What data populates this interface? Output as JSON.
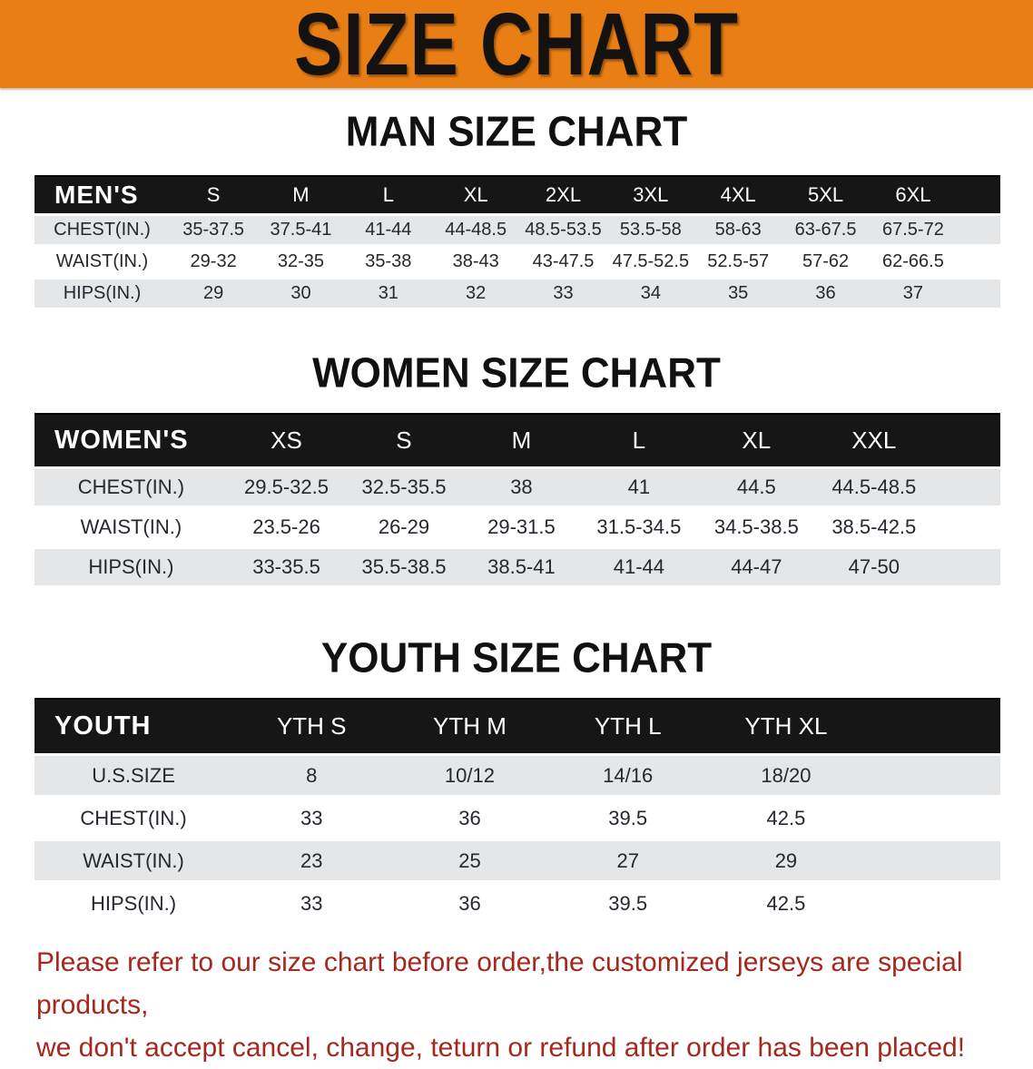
{
  "banner": {
    "title": "SIZE CHART",
    "background": "#E87E14",
    "title_color": "#141210"
  },
  "sections": [
    {
      "id": "men",
      "heading": "MAN SIZE CHART",
      "group_label": "MEN'S",
      "columns": [
        "S",
        "M",
        "L",
        "XL",
        "2XL",
        "3XL",
        "4XL",
        "5XL",
        "6XL"
      ],
      "rows": [
        {
          "label": "CHEST(IN.)",
          "values": [
            "35-37.5",
            "37.5-41",
            "41-44",
            "44-48.5",
            "48.5-53.5",
            "53.5-58",
            "58-63",
            "63-67.5",
            "67.5-72"
          ]
        },
        {
          "label": "WAIST(IN.)",
          "values": [
            "29-32",
            "32-35",
            "35-38",
            "38-43",
            "43-47.5",
            "47.5-52.5",
            "52.5-57",
            "57-62",
            "62-66.5"
          ]
        },
        {
          "label": "HIPS(IN.)",
          "values": [
            "29",
            "30",
            "31",
            "32",
            "33",
            "34",
            "35",
            "36",
            "37"
          ]
        }
      ]
    },
    {
      "id": "women",
      "heading": "WOMEN SIZE CHART",
      "group_label": "WOMEN'S",
      "columns": [
        "XS",
        "S",
        "M",
        "L",
        "XL",
        "XXL"
      ],
      "rows": [
        {
          "label": "CHEST(IN.)",
          "values": [
            "29.5-32.5",
            "32.5-35.5",
            "38",
            "41",
            "44.5",
            "44.5-48.5"
          ]
        },
        {
          "label": "WAIST(IN.)",
          "values": [
            "23.5-26",
            "26-29",
            "29-31.5",
            "31.5-34.5",
            "34.5-38.5",
            "38.5-42.5"
          ]
        },
        {
          "label": "HIPS(IN.)",
          "values": [
            "33-35.5",
            "35.5-38.5",
            "38.5-41",
            "41-44",
            "44-47",
            "47-50"
          ]
        }
      ]
    },
    {
      "id": "youth",
      "heading": "YOUTH SIZE CHART",
      "group_label": "YOUTH",
      "columns": [
        "YTH S",
        "YTH M",
        "YTH L",
        "YTH XL"
      ],
      "rows": [
        {
          "label": "U.S.SIZE",
          "values": [
            "8",
            "10/12",
            "14/16",
            "18/20"
          ]
        },
        {
          "label": "CHEST(IN.)",
          "values": [
            "33",
            "36",
            "39.5",
            "42.5"
          ]
        },
        {
          "label": "WAIST(IN.)",
          "values": [
            "23",
            "25",
            "27",
            "29"
          ]
        },
        {
          "label": "HIPS(IN.)",
          "values": [
            "33",
            "36",
            "39.5",
            "42.5"
          ]
        }
      ]
    }
  ],
  "disclaimer": {
    "line1": "Please refer to our size chart before order,the customized jerseys are special products,",
    "line2": "we don't accept cancel, change, teturn or refund after order has been placed!",
    "color": "#A5281E"
  },
  "colors": {
    "stripe": "#E4E6E7",
    "header_bar": "#161616"
  }
}
